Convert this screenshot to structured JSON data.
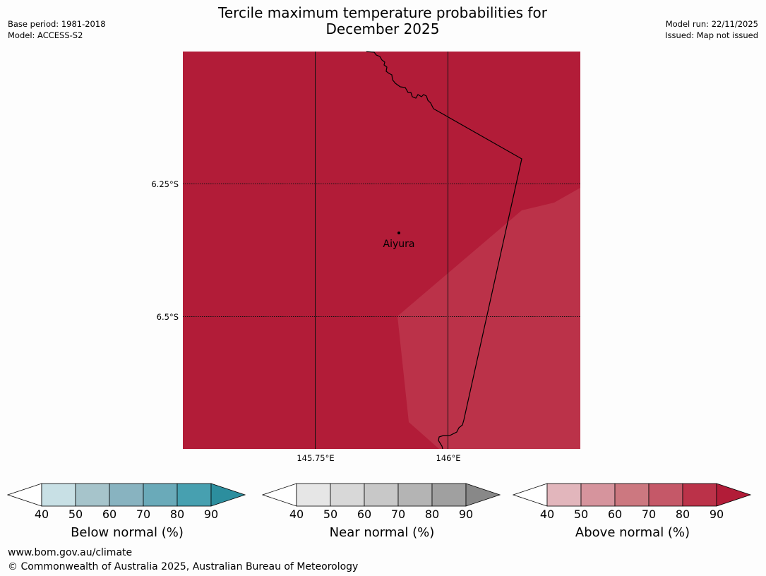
{
  "title": {
    "line1": "Tercile maximum temperature probabilities for",
    "line2": "December 2025"
  },
  "meta": {
    "base_period": "Base period: 1981-2018",
    "model": "Model: ACCESS-S2",
    "model_run": "Model run: 22/11/2025",
    "issued": "Issued: Map not issued"
  },
  "map": {
    "longitudes": [
      "145.75°E",
      "146°E"
    ],
    "latitudes": [
      "6.25°S",
      "6.5°S"
    ],
    "place": "Aiyura",
    "colors": {
      "above_90": "#b21c38",
      "above_80": "#bb3249",
      "border": "#000000"
    }
  },
  "colorbars": [
    {
      "label": "Below normal (%)",
      "ticks": [
        "40",
        "50",
        "60",
        "70",
        "80",
        "90"
      ],
      "colors": [
        "#ffffff",
        "#c8e0e5",
        "#a6c4cb",
        "#88b3c0",
        "#6aaab9",
        "#47a0b0",
        "#2c8e9e"
      ]
    },
    {
      "label": "Near normal (%)",
      "ticks": [
        "40",
        "50",
        "60",
        "70",
        "80",
        "90"
      ],
      "colors": [
        "#ffffff",
        "#e6e6e6",
        "#d8d8d8",
        "#c8c8c8",
        "#b4b4b4",
        "#a0a0a0",
        "#888888"
      ]
    },
    {
      "label": "Above normal (%)",
      "ticks": [
        "40",
        "50",
        "60",
        "70",
        "80",
        "90"
      ],
      "colors": [
        "#ffffff",
        "#e2b6bc",
        "#d6949d",
        "#cc7880",
        "#c55868",
        "#bb3249",
        "#b21c38"
      ]
    }
  ],
  "footer": {
    "url": "www.bom.gov.au/climate",
    "copyright": "© Commonwealth of Australia 2025, Australian Bureau of Meteorology"
  }
}
